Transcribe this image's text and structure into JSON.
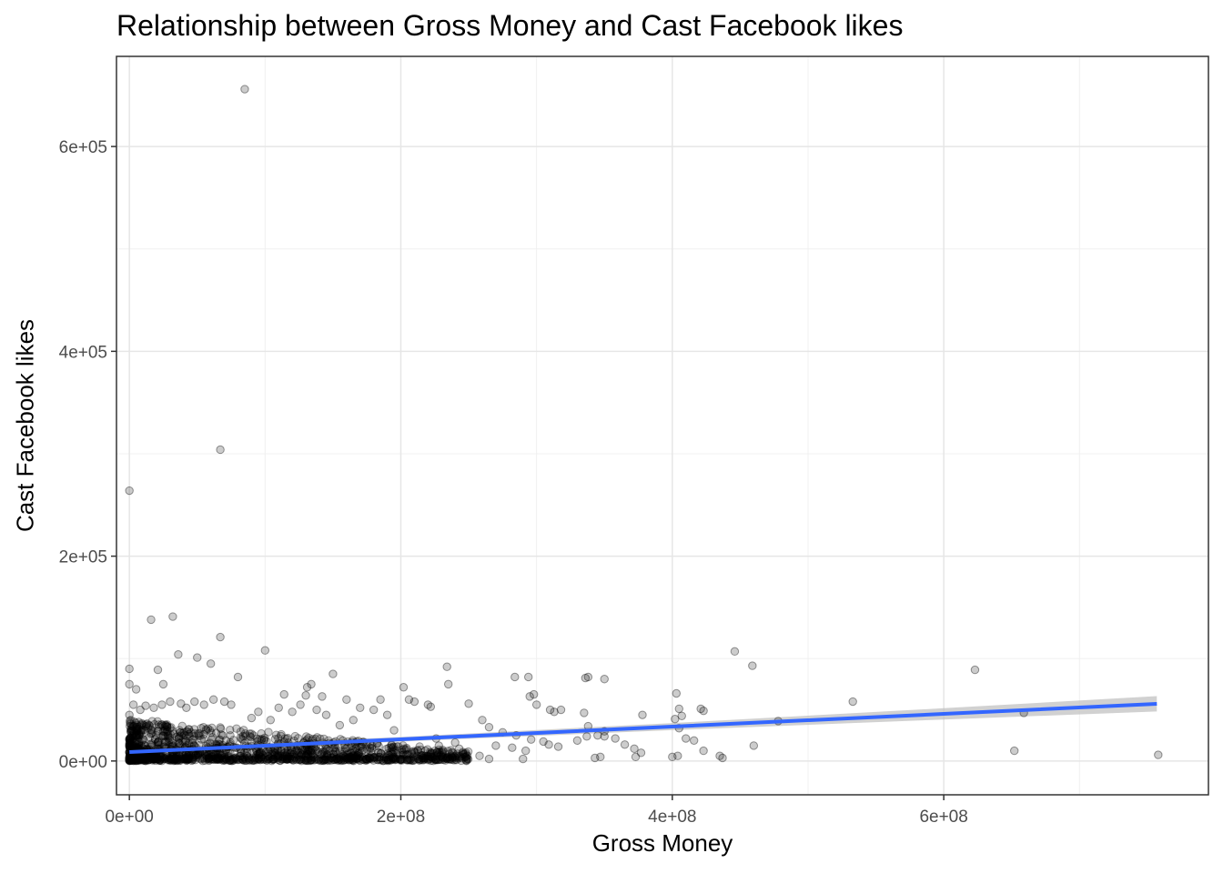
{
  "chart_data": {
    "type": "scatter",
    "title": "Relationship between Gross Money and Cast Facebook likes",
    "xlabel": "Gross Money",
    "ylabel": "Cast Facebook likes",
    "xlim": [
      -9500000,
      795000000
    ],
    "ylim": [
      -33000,
      688000
    ],
    "x_ticks": [
      {
        "value": 0,
        "label": "0e+00"
      },
      {
        "value": 200000000,
        "label": "2e+08"
      },
      {
        "value": 400000000,
        "label": "4e+08"
      },
      {
        "value": 600000000,
        "label": "6e+08"
      }
    ],
    "y_ticks": [
      {
        "value": 0,
        "label": "0e+00"
      },
      {
        "value": 200000,
        "label": "2e+05"
      },
      {
        "value": 400000,
        "label": "4e+05"
      },
      {
        "value": 600000,
        "label": "6e+05"
      }
    ],
    "grid": true,
    "point_color": "#000000",
    "point_alpha": 0.2,
    "series": [
      {
        "points": [
          [
            85000000,
            656000
          ],
          [
            67000000,
            304000
          ],
          [
            0,
            264000
          ],
          [
            32000000,
            141000
          ],
          [
            16000000,
            138000
          ],
          [
            67000000,
            121000
          ],
          [
            100000000,
            108000
          ],
          [
            36000000,
            104000
          ],
          [
            50000000,
            101000
          ],
          [
            60000000,
            95000
          ],
          [
            446000000,
            107000
          ],
          [
            459000000,
            93000
          ],
          [
            623000000,
            89000
          ],
          [
            0,
            90000
          ],
          [
            21000000,
            89000
          ],
          [
            80000000,
            82000
          ],
          [
            150000000,
            85000
          ],
          [
            284000000,
            82000
          ],
          [
            294000000,
            82000
          ],
          [
            336000000,
            81000
          ],
          [
            338000000,
            82000
          ],
          [
            350000000,
            80000
          ],
          [
            234000000,
            92000
          ],
          [
            235000000,
            75000
          ],
          [
            202000000,
            72000
          ],
          [
            134000000,
            75000
          ],
          [
            131000000,
            72000
          ],
          [
            5000000,
            70000
          ],
          [
            25000000,
            75000
          ],
          [
            114000000,
            65000
          ],
          [
            130000000,
            64000
          ],
          [
            142000000,
            63000
          ],
          [
            160000000,
            60000
          ],
          [
            185000000,
            60000
          ],
          [
            206000000,
            60000
          ],
          [
            210000000,
            58000
          ],
          [
            220000000,
            55000
          ],
          [
            222000000,
            53000
          ],
          [
            250000000,
            56000
          ],
          [
            295000000,
            63000
          ],
          [
            298000000,
            65000
          ],
          [
            300000000,
            55000
          ],
          [
            310000000,
            50000
          ],
          [
            313000000,
            48000
          ],
          [
            318000000,
            50000
          ],
          [
            335000000,
            47000
          ],
          [
            378000000,
            45000
          ],
          [
            403000000,
            66000
          ],
          [
            405000000,
            51000
          ],
          [
            407000000,
            44000
          ],
          [
            421000000,
            51000
          ],
          [
            423000000,
            49000
          ],
          [
            533000000,
            58000
          ],
          [
            659000000,
            47000
          ],
          [
            402000000,
            41000
          ],
          [
            405000000,
            32000
          ],
          [
            478000000,
            39000
          ],
          [
            338000000,
            34000
          ],
          [
            350000000,
            24000
          ],
          [
            350000000,
            29000
          ],
          [
            260000000,
            40000
          ],
          [
            265000000,
            33000
          ],
          [
            275000000,
            28000
          ],
          [
            285000000,
            25000
          ],
          [
            296000000,
            21000
          ],
          [
            305000000,
            19000
          ],
          [
            309000000,
            16000
          ],
          [
            316000000,
            14000
          ],
          [
            330000000,
            20000
          ],
          [
            337000000,
            24000
          ],
          [
            345000000,
            25000
          ],
          [
            358000000,
            22000
          ],
          [
            365000000,
            16000
          ],
          [
            372000000,
            12000
          ],
          [
            377000000,
            8000
          ],
          [
            404000000,
            5000
          ],
          [
            400000000,
            4000
          ],
          [
            410000000,
            22000
          ],
          [
            416000000,
            20000
          ],
          [
            423000000,
            10000
          ],
          [
            435000000,
            5000
          ],
          [
            437000000,
            3000
          ],
          [
            460000000,
            15000
          ],
          [
            652000000,
            10000
          ],
          [
            758000000,
            6000
          ],
          [
            343000000,
            3000
          ],
          [
            347000000,
            4000
          ],
          [
            373000000,
            4000
          ],
          [
            290000000,
            2000
          ],
          [
            292000000,
            10000
          ],
          [
            282000000,
            13000
          ],
          [
            270000000,
            15000
          ],
          [
            243000000,
            12000
          ],
          [
            248000000,
            8000
          ],
          [
            258000000,
            5000
          ],
          [
            265000000,
            2000
          ],
          [
            240000000,
            18000
          ],
          [
            226000000,
            22000
          ],
          [
            228000000,
            15000
          ],
          [
            218000000,
            10000
          ],
          [
            212000000,
            5000
          ],
          [
            195000000,
            30000
          ],
          [
            190000000,
            45000
          ],
          [
            180000000,
            50000
          ],
          [
            170000000,
            52000
          ],
          [
            165000000,
            40000
          ],
          [
            155000000,
            35000
          ],
          [
            145000000,
            45000
          ],
          [
            138000000,
            50000
          ],
          [
            126000000,
            55000
          ],
          [
            120000000,
            48000
          ],
          [
            110000000,
            52000
          ],
          [
            104000000,
            40000
          ],
          [
            95000000,
            48000
          ],
          [
            90000000,
            42000
          ],
          [
            75000000,
            55000
          ],
          [
            70000000,
            58000
          ],
          [
            62000000,
            60000
          ],
          [
            55000000,
            55000
          ],
          [
            48000000,
            58000
          ],
          [
            42000000,
            52000
          ],
          [
            38000000,
            56000
          ],
          [
            30000000,
            58000
          ],
          [
            24000000,
            55000
          ],
          [
            18000000,
            52000
          ],
          [
            12000000,
            54000
          ],
          [
            8000000,
            50000
          ],
          [
            3000000,
            55000
          ],
          [
            0,
            45000
          ],
          [
            0,
            75000
          ]
        ]
      }
    ],
    "fit_line": {
      "color": "#3366FF",
      "ribbon_color": "#bdbdbd",
      "points": [
        [
          0,
          8700
        ],
        [
          200000000,
          21200
        ],
        [
          400000000,
          33600
        ],
        [
          600000000,
          46000
        ],
        [
          757000000,
          55800
        ]
      ],
      "se": [
        [
          0,
          3000
        ],
        [
          200000000,
          2300
        ],
        [
          400000000,
          3500
        ],
        [
          600000000,
          5500
        ],
        [
          757000000,
          7500
        ]
      ]
    }
  }
}
